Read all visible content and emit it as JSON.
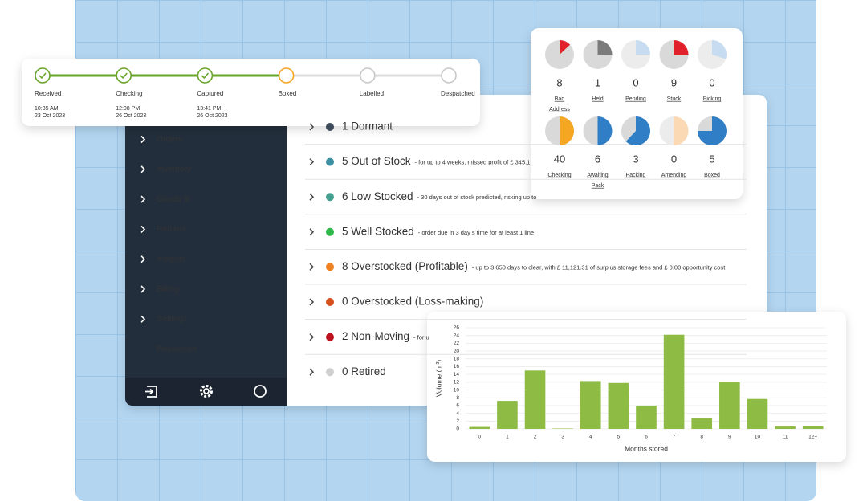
{
  "tracker": {
    "steps": [
      {
        "label": "Received",
        "time": "10:35 AM",
        "date": "23 Oct 2023",
        "state": "done"
      },
      {
        "label": "Checking",
        "time": "12:08 PM",
        "date": "26 Oct 2023",
        "state": "done"
      },
      {
        "label": "Captured",
        "time": "13:41 PM",
        "date": "26 Oct 2023",
        "state": "done"
      },
      {
        "label": "Boxed",
        "state": "current"
      },
      {
        "label": "Labelled",
        "state": "todo"
      },
      {
        "label": "Despatched",
        "state": "todo"
      }
    ]
  },
  "sidebar": {
    "items": [
      "Orders",
      "Inventory",
      "Goods In",
      "Returns",
      "Insights",
      "Billing",
      "Settings",
      "Resources"
    ]
  },
  "stock": {
    "rows": [
      {
        "title": "1 Dormant",
        "color": "#3d4a5a"
      },
      {
        "title": "5 Out of Stock",
        "note": "- for up to 4 weeks, missed profit of £ 345.1",
        "color": "#3f8fa3"
      },
      {
        "title": "6 Low Stocked",
        "note": "- 30 days out of stock predicted, risking up to",
        "color": "#44a08f"
      },
      {
        "title": "5 Well Stocked",
        "note": "- order due in 3 day s time for at least 1 line",
        "color": "#2cb84a"
      },
      {
        "title": "8 Overstocked (Profitable)",
        "note": "- up to 3,650 days to clear, with £ 11,121.31 of surplus storage fees and £ 0.00 opportunity cost",
        "color": "#f08221"
      },
      {
        "title": "0 Overstocked (Loss-making)",
        "color": "#d6501c"
      },
      {
        "title": "2 Non-Moving",
        "note": "- for u",
        "color": "#c0121e"
      },
      {
        "title": "0 Retired",
        "color": "#cfcfcf"
      }
    ]
  },
  "statuses": [
    {
      "count": 8,
      "label": [
        "Bad",
        "Address"
      ],
      "share": 13,
      "color": "#e0212b",
      "muted": false
    },
    {
      "count": 1,
      "label": [
        "Held"
      ],
      "share": 25,
      "color": "#7b7b7b",
      "muted": false
    },
    {
      "count": 0,
      "label": [
        "Pending"
      ],
      "share": 25,
      "color": "#c7dcf0",
      "muted": true
    },
    {
      "count": 9,
      "label": [
        "Stuck"
      ],
      "share": 25,
      "color": "#e0212b",
      "muted": false
    },
    {
      "count": 0,
      "label": [
        "Picking"
      ],
      "share": 30,
      "color": "#c7dcf0",
      "muted": true
    },
    {
      "count": 40,
      "label": [
        "Checking"
      ],
      "share": 50,
      "color": "#f5a623",
      "muted": false
    },
    {
      "count": 6,
      "label": [
        "Awaiting",
        "Pack"
      ],
      "share": 50,
      "color": "#2f7ec6",
      "muted": false
    },
    {
      "count": 3,
      "label": [
        "Packing"
      ],
      "share": 62,
      "color": "#2f7ec6",
      "muted": false
    },
    {
      "count": 0,
      "label": [
        "Amending"
      ],
      "share": 50,
      "color": "#fbd9b5",
      "muted": true
    },
    {
      "count": 5,
      "label": [
        "Boxed"
      ],
      "share": 75,
      "color": "#2f7ec6",
      "muted": false
    }
  ],
  "chart_data": {
    "type": "bar",
    "x_label": "Months stored",
    "y_label": "Volume (m³)",
    "categories": [
      "0",
      "1",
      "2",
      "3",
      "4",
      "5",
      "6",
      "7",
      "8",
      "9",
      "10",
      "11",
      "12+"
    ],
    "values": [
      0.5,
      7.2,
      15,
      0.1,
      12.3,
      11.8,
      6,
      24.2,
      2.8,
      12,
      7.7,
      0.6,
      0.7
    ],
    "color": "#8dbb44",
    "ylim": [
      0,
      26
    ],
    "yticks": [
      0,
      2,
      4,
      6,
      8,
      10,
      12,
      14,
      16,
      18,
      20,
      22,
      24,
      26
    ],
    "grid": true
  }
}
